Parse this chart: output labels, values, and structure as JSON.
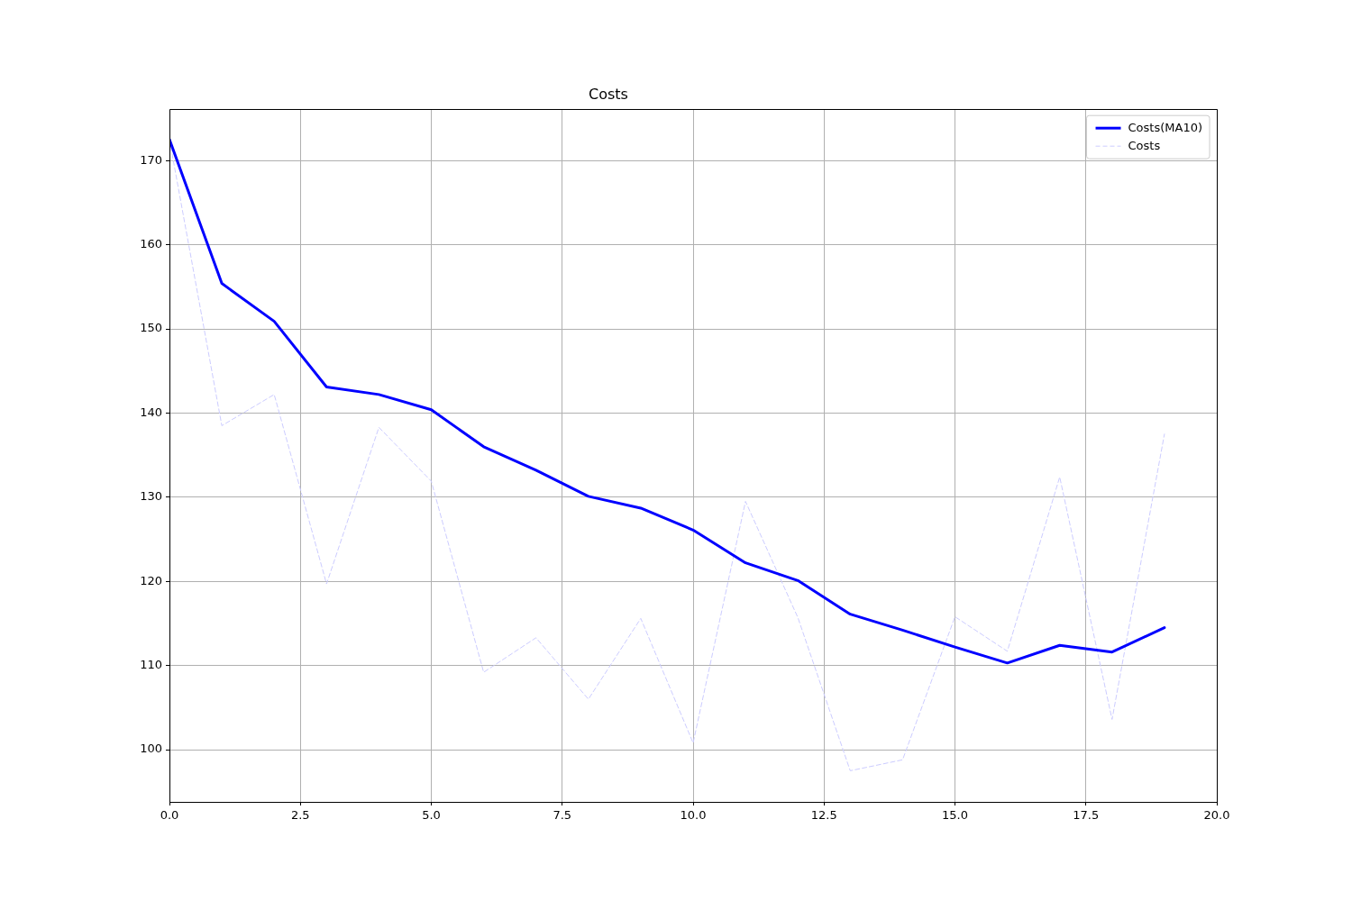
{
  "chart_data": {
    "type": "line",
    "title": "Costs",
    "x": [
      0,
      1,
      2,
      3,
      4,
      5,
      6,
      7,
      8,
      9,
      10,
      11,
      12,
      13,
      14,
      15,
      16,
      17,
      18,
      19
    ],
    "series": [
      {
        "name": "Costs(MA10)",
        "color": "#0000ff",
        "line_style": "solid",
        "values": [
          172.5,
          155.4,
          150.9,
          143.1,
          142.2,
          140.4,
          136.0,
          133.2,
          130.1,
          128.7,
          126.1,
          122.2,
          120.1,
          116.1,
          114.2,
          112.2,
          110.3,
          112.4,
          111.6,
          114.5
        ]
      },
      {
        "name": "Costs",
        "color": "#ccccff",
        "line_style": "dashed",
        "values": [
          172.5,
          138.5,
          142.2,
          119.7,
          138.3,
          131.9,
          109.2,
          113.3,
          106.0,
          115.6,
          100.8,
          129.5,
          115.7,
          97.5,
          98.8,
          115.8,
          111.7,
          132.4,
          103.6,
          137.5
        ]
      }
    ],
    "xlim": [
      0,
      20
    ],
    "xticks": [
      {
        "value": 0,
        "label": "0.0"
      },
      2.5,
      {
        "value": 5,
        "label": "5.0"
      },
      7.5,
      {
        "value": 10,
        "label": "10.0"
      },
      12.5,
      {
        "value": 15,
        "label": "15.0"
      },
      17.5,
      {
        "value": 20,
        "label": "20.0"
      }
    ],
    "ylim": [
      93.8,
      176.1
    ],
    "yticks": [
      100,
      110,
      120,
      130,
      140,
      150,
      160,
      170
    ],
    "grid": true,
    "legend": "top right"
  }
}
